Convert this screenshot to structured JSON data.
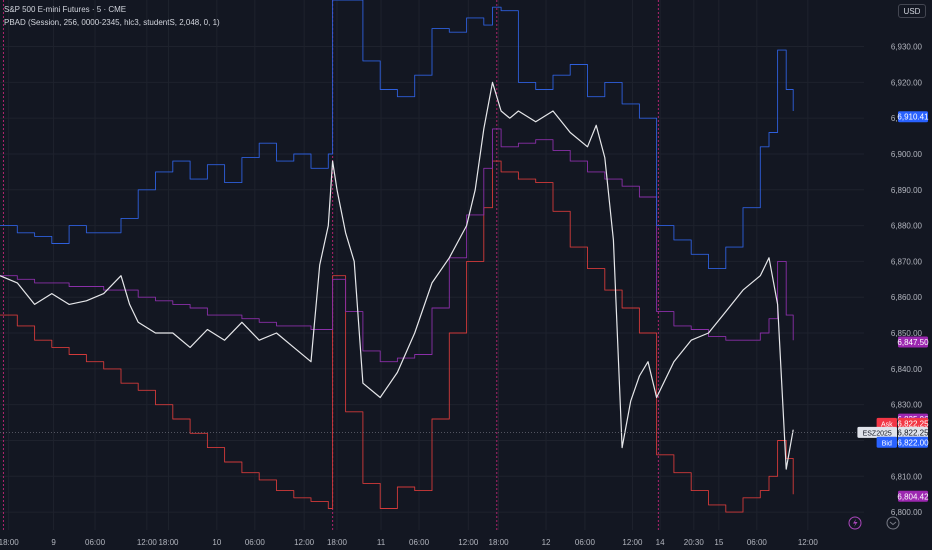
{
  "header": {
    "title": "S&P 500 E-mini Futures · 5 · CME",
    "indicator": "PBAD (Session, 256, 0000-2345, hlc3, studentS, 2,048, 0, 1)"
  },
  "currency_button": "USD",
  "colors": {
    "background": "#131722",
    "price": "#e6e7ea",
    "upper_band": "#2e5fdc",
    "mid_band": "#8a2fa8",
    "lower_band": "#d23a3a",
    "session_line": "#b0246e"
  },
  "icons": [
    "lightning-icon",
    "replay-icon"
  ],
  "chart_data": {
    "type": "line",
    "title": "S&P 500 E-mini Futures · 5 · CME",
    "ylim": [
      6795,
      6943
    ],
    "y_ticks": [
      6800,
      6810,
      6820,
      6830,
      6840,
      6850,
      6860,
      6870,
      6880,
      6890,
      6900,
      6910,
      6920,
      6930
    ],
    "y_tick_labels": [
      "6,800.00",
      "6,810.00",
      "6,820.00",
      "6,830.00",
      "6,840.00",
      "6,850.00",
      "6,860.00",
      "6,870.00",
      "6,880.00",
      "6,890.00",
      "6,900.00",
      "6,910.00",
      "6,920.00",
      "6,930.00"
    ],
    "x_labels": [
      "18:00",
      "9",
      "06:00",
      "12:00",
      "18:00",
      "10",
      "06:00",
      "12:00",
      "18:00",
      "11",
      "06:00",
      "12:00",
      "18:00",
      "12",
      "06:00",
      "12:00",
      "14",
      "20:30",
      "15",
      "06:00",
      "12:00"
    ],
    "x_range": [
      0,
      100
    ],
    "x_label_positions": [
      1,
      6.2,
      11,
      17,
      19.5,
      25.1,
      29.5,
      35.2,
      39,
      44.1,
      48.5,
      54.2,
      57.7,
      63.2,
      67.7,
      73.2,
      76.4,
      80.3,
      83.2,
      87.6,
      93.5
    ],
    "session_breaks": [
      0.4,
      38.5,
      57.5,
      76.2
    ],
    "price_labels": [
      {
        "value": 6910.41,
        "label": "6,910.41",
        "color": "#2962ff"
      },
      {
        "value": 6847.5,
        "label": "6,847.50",
        "color": "#9c27b0"
      },
      {
        "value": 6825.96,
        "label": "6,825.96",
        "color": "#9c27b0"
      },
      {
        "value": 6822.25,
        "label": "6,822.25",
        "color": "#f23645",
        "tag": "Ask"
      },
      {
        "value": 6822.25,
        "label": "6,822.25",
        "color": "#e0e3eb",
        "tag": "ESZ2025"
      },
      {
        "value": 6822.0,
        "label": "6,822.00",
        "color": "#2962ff",
        "tag": "Bid"
      },
      {
        "value": 6804.42,
        "label": "6,804.42",
        "color": "#9c27b0"
      }
    ],
    "series": [
      {
        "key": "price",
        "x": [
          0,
          2,
          4,
          6,
          8,
          10,
          12,
          14,
          15,
          16,
          18,
          20,
          22,
          24,
          26,
          28,
          30,
          32,
          34,
          36,
          37,
          38,
          38.5,
          39,
          40,
          41,
          42,
          44,
          46,
          48,
          50,
          52,
          54,
          55,
          56,
          57,
          58,
          59,
          60,
          62,
          64,
          66,
          68,
          69,
          70,
          71,
          72,
          73,
          74,
          75,
          76,
          78,
          80,
          82,
          84,
          86,
          88,
          89,
          90,
          91,
          91.8
        ],
        "y": [
          6866,
          6864,
          6858,
          6861,
          6858,
          6859,
          6861,
          6866,
          6858,
          6853,
          6850,
          6850,
          6846,
          6851,
          6848,
          6853,
          6848,
          6850,
          6846,
          6842,
          6869,
          6880,
          6898,
          6890,
          6878,
          6870,
          6836,
          6832,
          6839,
          6850,
          6864,
          6871,
          6880,
          6890,
          6907,
          6920,
          6912,
          6910,
          6912,
          6909,
          6912,
          6906,
          6902,
          6908,
          6899,
          6876,
          6818,
          6831,
          6838,
          6842,
          6832,
          6842,
          6848,
          6850,
          6856,
          6862,
          6866,
          6871,
          6858,
          6812,
          6823
        ]
      },
      {
        "key": "upper_band",
        "x": [
          0,
          2,
          4,
          6,
          8,
          10,
          12,
          14,
          16,
          18,
          20,
          22,
          24,
          26,
          28,
          30,
          32,
          34,
          36,
          38,
          38.5,
          40,
          42,
          44,
          46,
          48,
          50,
          52,
          54,
          56,
          57,
          58,
          60,
          62,
          64,
          66,
          68,
          70,
          72,
          74,
          76,
          78,
          80,
          82,
          84,
          86,
          88,
          89,
          90,
          91,
          91.8
        ],
        "y": [
          6880,
          6878,
          6877,
          6875,
          6880,
          6878,
          6878,
          6882,
          6890,
          6895,
          6898,
          6893,
          6897,
          6892,
          6899,
          6903,
          6898,
          6900,
          6896,
          6900,
          6943,
          6943,
          6926,
          6918,
          6916,
          6922,
          6935,
          6934,
          6938,
          6936,
          6941,
          6940,
          6920,
          6918,
          6922,
          6925,
          6916,
          6920,
          6914,
          6910,
          6880,
          6876,
          6872,
          6868,
          6874,
          6885,
          6902,
          6906,
          6929,
          6918,
          6912
        ]
      },
      {
        "key": "mid_band",
        "x": [
          0,
          2,
          4,
          6,
          8,
          10,
          12,
          14,
          16,
          18,
          20,
          22,
          24,
          26,
          28,
          30,
          32,
          34,
          36,
          38,
          38.5,
          40,
          42,
          44,
          46,
          48,
          50,
          52,
          54,
          56,
          57,
          58,
          60,
          62,
          64,
          66,
          68,
          70,
          72,
          74,
          76,
          78,
          80,
          82,
          84,
          86,
          88,
          89,
          90,
          91,
          91.8
        ],
        "y": [
          6866,
          6865,
          6864,
          6864,
          6863,
          6863,
          6862,
          6862,
          6860,
          6859,
          6858,
          6857,
          6855,
          6855,
          6854,
          6853,
          6852,
          6852,
          6851,
          6851,
          6865,
          6856,
          6845,
          6842,
          6843,
          6844,
          6857,
          6871,
          6883,
          6896,
          6907,
          6902,
          6903,
          6904,
          6901,
          6898,
          6895,
          6893,
          6891,
          6888,
          6856,
          6852,
          6851,
          6849,
          6848,
          6848,
          6850,
          6854,
          6870,
          6855,
          6848
        ]
      },
      {
        "key": "lower_band",
        "x": [
          0,
          2,
          4,
          6,
          8,
          10,
          12,
          14,
          16,
          18,
          20,
          22,
          24,
          26,
          28,
          30,
          32,
          34,
          36,
          38,
          38.5,
          40,
          42,
          44,
          46,
          48,
          50,
          52,
          54,
          56,
          57,
          58,
          60,
          62,
          64,
          66,
          68,
          70,
          72,
          74,
          76,
          78,
          80,
          82,
          84,
          86,
          88,
          89,
          90,
          91,
          91.8
        ],
        "y": [
          6855,
          6852,
          6848,
          6846,
          6844,
          6842,
          6840,
          6836,
          6834,
          6830,
          6826,
          6822,
          6818,
          6814,
          6811,
          6809,
          6806,
          6804,
          6803,
          6801,
          6866,
          6828,
          6808,
          6801,
          6807,
          6806,
          6826,
          6850,
          6870,
          6885,
          6898,
          6895,
          6893,
          6892,
          6884,
          6874,
          6868,
          6862,
          6857,
          6850,
          6816,
          6811,
          6806,
          6802,
          6800,
          6804,
          6806,
          6810,
          6820,
          6815,
          6805
        ]
      }
    ]
  }
}
